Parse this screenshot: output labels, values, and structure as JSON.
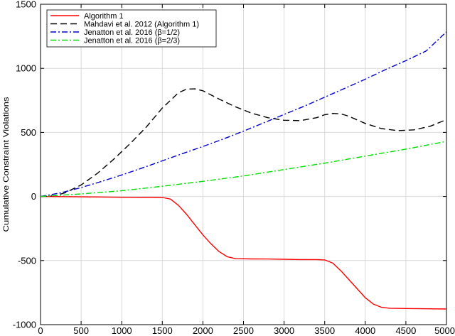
{
  "chart_data": {
    "type": "line",
    "title": "",
    "xlabel": "",
    "ylabel": "Cumulative Constraint Violations",
    "xlim": [
      0,
      5000
    ],
    "ylim": [
      -1000,
      1500
    ],
    "xticks": [
      0,
      500,
      1000,
      1500,
      2000,
      2500,
      3000,
      3500,
      4000,
      4500,
      5000
    ],
    "yticks": [
      -1000,
      -500,
      0,
      500,
      1000,
      1500
    ],
    "grid": true,
    "legend_position": "top-left",
    "series": [
      {
        "name": "Algorithm 1",
        "color": "#ff0000",
        "dash": "solid",
        "x": [
          0,
          500,
          1000,
          1500,
          1600,
          1700,
          1800,
          1900,
          2000,
          2100,
          2200,
          2300,
          2400,
          2600,
          2800,
          3000,
          3200,
          3400,
          3500,
          3600,
          3700,
          3800,
          3900,
          4000,
          4100,
          4200,
          4300,
          4500,
          4700,
          5000
        ],
        "y": [
          0,
          -3,
          -6,
          -8,
          -20,
          -70,
          -140,
          -220,
          -300,
          -370,
          -430,
          -470,
          -485,
          -487,
          -488,
          -490,
          -492,
          -492,
          -495,
          -520,
          -580,
          -650,
          -720,
          -790,
          -840,
          -865,
          -872,
          -874,
          -876,
          -878
        ]
      },
      {
        "name": "Mahdavi et al. 2012 (Algorithm 1)",
        "color": "#000000",
        "dash": "dashed",
        "x": [
          0,
          100,
          200,
          300,
          500,
          700,
          900,
          1100,
          1300,
          1500,
          1700,
          1800,
          1900,
          2000,
          2200,
          2400,
          2600,
          2800,
          3000,
          3200,
          3400,
          3500,
          3600,
          3700,
          3800,
          4000,
          4200,
          4400,
          4600,
          4800,
          5000
        ],
        "y": [
          0,
          2,
          10,
          28,
          90,
          180,
          290,
          410,
          540,
          690,
          810,
          838,
          840,
          825,
          760,
          700,
          650,
          615,
          595,
          592,
          615,
          638,
          648,
          645,
          625,
          570,
          530,
          514,
          520,
          548,
          600
        ]
      },
      {
        "name": "Jenatton et al. 2016 (β=1/2)",
        "color": "#0000cc",
        "dash": "dashdot",
        "x": [
          0,
          250,
          500,
          750,
          1000,
          1250,
          1500,
          1750,
          2000,
          2250,
          2500,
          2750,
          3000,
          3250,
          3500,
          3750,
          4000,
          4250,
          4500,
          4750,
          5000
        ],
        "y": [
          0,
          28,
          70,
          117,
          168,
          222,
          278,
          335,
          390,
          448,
          510,
          575,
          640,
          705,
          775,
          845,
          915,
          990,
          1060,
          1135,
          1285
        ]
      },
      {
        "name": "Jenatton et al. 2016 (β=2/3)",
        "color": "#00dd00",
        "dash": "dashdot",
        "x": [
          0,
          500,
          1000,
          1500,
          2000,
          2500,
          3000,
          3500,
          4000,
          4500,
          5000
        ],
        "y": [
          0,
          20,
          45,
          80,
          118,
          160,
          210,
          260,
          315,
          370,
          430
        ]
      }
    ]
  }
}
